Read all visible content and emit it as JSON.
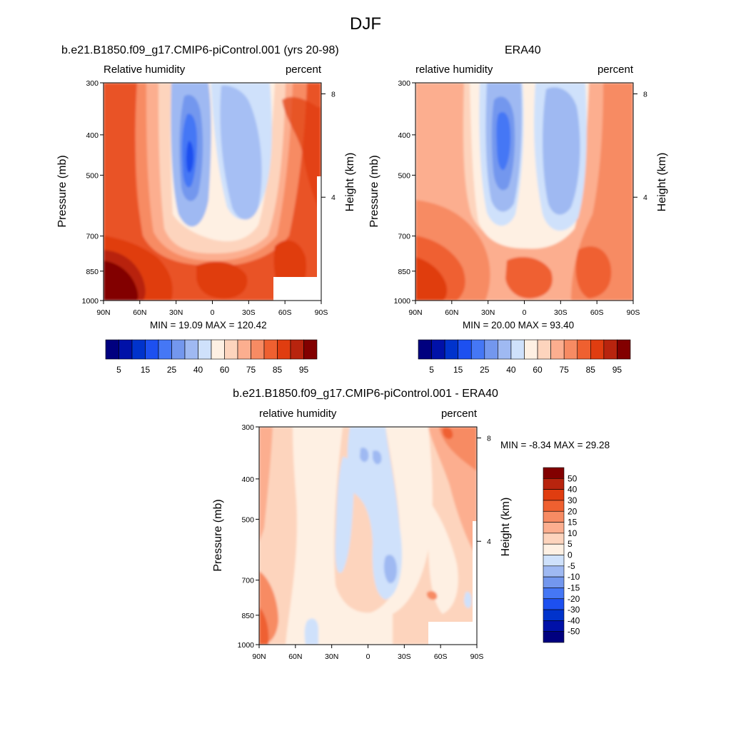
{
  "title": "DJF",
  "panels": [
    {
      "id": "model",
      "title": "b.e21.B1850.f09_g17.CMIP6-piControl.001 (yrs 20-98)",
      "left_label": "Relative humidity",
      "right_label": "percent",
      "stats": "MIN =  19.09  MAX = 120.42",
      "ylabel": "Pressure (mb)",
      "y2label": "Height (km)"
    },
    {
      "id": "obs",
      "title": "ERA40",
      "left_label": "relative humidity",
      "right_label": "percent",
      "stats": "MIN =  20.00  MAX =  93.40",
      "ylabel": "Pressure (mb)",
      "y2label": "Height (km)"
    },
    {
      "id": "diff",
      "title": "b.e21.B1850.f09_g17.CMIP6-piControl.001 - ERA40",
      "left_label": "relative humidity",
      "right_label": "percent",
      "stats": "MIN =  -8.34  MAX =  29.28",
      "ylabel": "Pressure (mb)",
      "y2label": "Height (km)"
    }
  ],
  "chart_data": {
    "type": "heatmap",
    "x_ticks": [
      "90N",
      "60N",
      "30N",
      "0",
      "30S",
      "60S",
      "90S"
    ],
    "x_values": [
      90,
      60,
      30,
      0,
      -30,
      -60,
      -90
    ],
    "pressure_ticks": [
      300,
      400,
      500,
      700,
      850,
      1000
    ],
    "pressure_scale": "log",
    "height_ticks": [
      8,
      4
    ],
    "abs_levels": [
      5,
      10,
      15,
      20,
      25,
      30,
      40,
      50,
      60,
      70,
      75,
      80,
      85,
      90,
      95
    ],
    "abs_colorbar_labels": [
      "5",
      "15",
      "25",
      "40",
      "60",
      "75",
      "85",
      "95"
    ],
    "abs_colors": [
      "#00007f",
      "#0011a8",
      "#0033cc",
      "#1d50f0",
      "#4577f5",
      "#7397ee",
      "#9fb9f2",
      "#cfe1fb",
      "#fef0e3",
      "#fdd4bd",
      "#fcae8f",
      "#f78b63",
      "#ef6030",
      "#e03d10",
      "#b8240e",
      "#820000"
    ],
    "diff_levels": [
      -50,
      -40,
      -30,
      -20,
      -15,
      -10,
      -5,
      0,
      5,
      10,
      15,
      20,
      30,
      40,
      50
    ],
    "diff_colorbar_labels": [
      "50",
      "40",
      "30",
      "20",
      "15",
      "10",
      "5",
      "0",
      "-5",
      "-10",
      "-15",
      "-20",
      "-30",
      "-40",
      "-50"
    ],
    "diff_colors": [
      "#00007f",
      "#0011a8",
      "#0033cc",
      "#1d50f0",
      "#4577f5",
      "#7397ee",
      "#9fb9f2",
      "#cfe1fb",
      "#fef0e3",
      "#fdd4bd",
      "#fcae8f",
      "#f78b63",
      "#ef6030",
      "#e03d10",
      "#b8240e",
      "#820000"
    ]
  }
}
